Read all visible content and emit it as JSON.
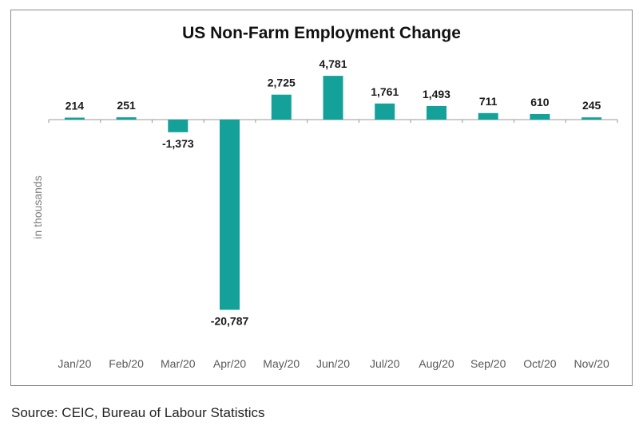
{
  "chart_data": {
    "type": "bar",
    "title": "US Non-Farm Employment Change",
    "ylabel": "in thousands",
    "xlabel": "",
    "categories": [
      "Jan/20",
      "Feb/20",
      "Mar/20",
      "Apr/20",
      "May/20",
      "Jun/20",
      "Jul/20",
      "Aug/20",
      "Sep/20",
      "Oct/20",
      "Nov/20"
    ],
    "values": [
      214,
      251,
      -1373,
      -20787,
      2725,
      4781,
      1761,
      1493,
      711,
      610,
      245
    ],
    "data_labels": [
      "214",
      "251",
      "-1,373",
      "-20,787",
      "2,725",
      "4,781",
      "1,761",
      "1,493",
      "711",
      "610",
      "245"
    ],
    "ylim": [
      -20787,
      4781
    ],
    "grid": false,
    "legend": "none",
    "bar_color": "#13a19a"
  },
  "source": "Source: CEIC, Bureau of Labour Statistics"
}
